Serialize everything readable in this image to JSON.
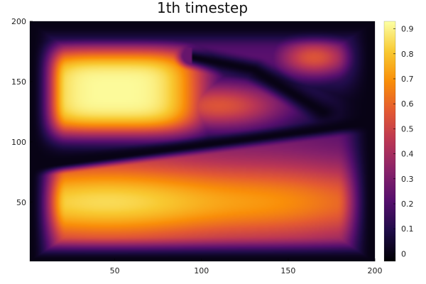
{
  "chart_data": {
    "type": "heatmap",
    "title": "1th timestep",
    "xlabel": "",
    "ylabel": "",
    "xlim": [
      1,
      200
    ],
    "ylim": [
      1,
      200
    ],
    "x_ticks": [
      50,
      100,
      150,
      200
    ],
    "y_ticks": [
      50,
      100,
      150,
      200
    ],
    "colorbar": {
      "range": [
        -0.03,
        0.93
      ],
      "ticks": [
        0,
        0.1,
        0.2,
        0.3,
        0.4,
        0.5,
        0.6,
        0.7,
        0.8,
        0.9
      ],
      "tick_labels": [
        "0",
        "0.1",
        "0.2",
        "0.3",
        "0.4",
        "0.5",
        "0.6",
        "0.7",
        "0.8",
        "0.9"
      ],
      "colormap": "inferno",
      "colormap_stops": [
        "#000004",
        "#1f0c48",
        "#550f6d",
        "#88226a",
        "#ba3655",
        "#e35933",
        "#f98e09",
        "#f8c931",
        "#fcffa4"
      ]
    },
    "description": {
      "lower_lobe": {
        "x_range": [
          20,
          190
        ],
        "y_range": [
          15,
          90
        ],
        "peak_value": 0.85,
        "peak_at": [
          45,
          45
        ]
      },
      "upper_lobe": {
        "x_range": [
          20,
          120
        ],
        "y_range": [
          110,
          190
        ],
        "peak_value": 0.92,
        "peak_at": [
          45,
          140
        ]
      },
      "upper_right_blob": {
        "center": [
          165,
          170
        ],
        "value": 0.55
      },
      "zero_ridge_1": {
        "from": [
          10,
          80
        ],
        "to": [
          195,
          115
        ]
      },
      "zero_ridge_2": {
        "from": [
          95,
          170
        ],
        "to": [
          170,
          125
        ]
      }
    }
  }
}
